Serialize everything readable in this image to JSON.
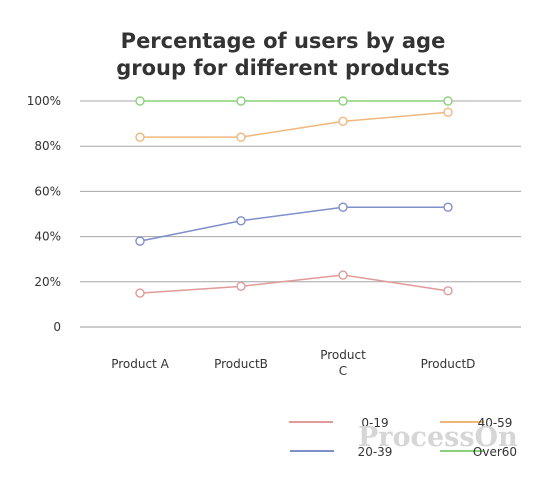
{
  "chart_data": {
    "type": "line",
    "title_lines": [
      "Percentage of users by age",
      "group for different products"
    ],
    "categories": [
      "Product A",
      "ProductB",
      "Product C",
      "ProductD"
    ],
    "category_label_lines": [
      [
        "Product A"
      ],
      [
        "ProductB"
      ],
      [
        "Product",
        "C"
      ],
      [
        "ProductD"
      ]
    ],
    "y_ticks": [
      {
        "value": 0,
        "label": "0"
      },
      {
        "value": 20,
        "label": "20%"
      },
      {
        "value": 40,
        "label": "40%"
      },
      {
        "value": 60,
        "label": "60%"
      },
      {
        "value": 80,
        "label": "80%"
      },
      {
        "value": 100,
        "label": "100%"
      }
    ],
    "ylim": [
      0,
      100
    ],
    "grid": true,
    "legend_position": "bottom-right",
    "series": [
      {
        "name": "0-19",
        "color": "#e09a9a",
        "values": [
          15,
          18,
          23,
          16
        ]
      },
      {
        "name": "20-39",
        "color": "#7f8fcb",
        "values": [
          38,
          47,
          53,
          53
        ]
      },
      {
        "name": "40-59",
        "color": "#f0b77d",
        "values": [
          84,
          84,
          91,
          95
        ]
      },
      {
        "name": "Over60",
        "color": "#8cd17a",
        "values": [
          100,
          100,
          100,
          100
        ]
      }
    ],
    "watermark": "ProcessOn"
  }
}
